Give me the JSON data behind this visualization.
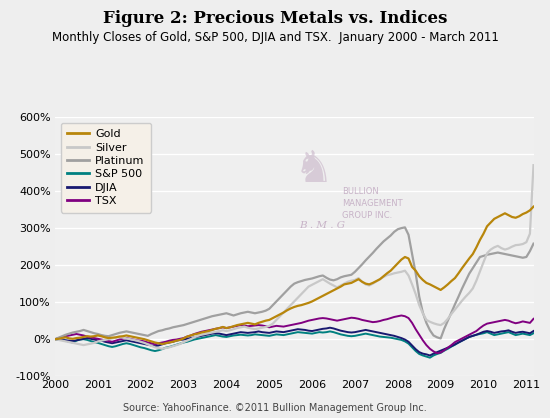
{
  "title": "Figure 2: Precious Metals vs. Indices",
  "subtitle": "Monthly Closes of Gold, S&P 500, DJIA and TSX.  January 2000 - March 2011",
  "source": "Source: YahooFinance. ©2011 Bullion Management Group Inc.",
  "ylim": [
    -100,
    600
  ],
  "yticks": [
    -100,
    0,
    100,
    200,
    300,
    400,
    500,
    600
  ],
  "ytick_labels": [
    "-100%",
    "0%",
    "100%",
    "200%",
    "300%",
    "400%",
    "500%",
    "600%"
  ],
  "xticks": [
    0,
    12,
    24,
    36,
    48,
    60,
    72,
    84,
    96,
    108,
    120,
    132
  ],
  "xtick_labels": [
    "2000",
    "2001",
    "2002",
    "2003",
    "2004",
    "2005",
    "2006",
    "2007",
    "2008",
    "2009",
    "2010",
    "2011"
  ],
  "series": {
    "Gold": {
      "color": "#B8860B",
      "linewidth": 1.6,
      "zorder": 5,
      "values": [
        0,
        1,
        3,
        5,
        2,
        1,
        3,
        4,
        6,
        8,
        7,
        8,
        10,
        8,
        5,
        3,
        4,
        5,
        7,
        8,
        10,
        8,
        6,
        4,
        2,
        0,
        -3,
        -6,
        -9,
        -11,
        -13,
        -11,
        -9,
        -7,
        -4,
        -2,
        2,
        7,
        10,
        13,
        15,
        18,
        20,
        22,
        25,
        28,
        30,
        33,
        30,
        32,
        35,
        38,
        40,
        42,
        44,
        42,
        40,
        44,
        47,
        50,
        52,
        57,
        62,
        67,
        72,
        78,
        83,
        87,
        90,
        92,
        95,
        98,
        102,
        107,
        112,
        117,
        122,
        127,
        132,
        137,
        142,
        148,
        150,
        152,
        157,
        162,
        155,
        150,
        148,
        152,
        157,
        162,
        170,
        178,
        185,
        195,
        205,
        215,
        222,
        218,
        195,
        185,
        170,
        160,
        152,
        148,
        143,
        138,
        133,
        140,
        148,
        157,
        165,
        178,
        192,
        205,
        218,
        230,
        248,
        268,
        285,
        305,
        315,
        325,
        330,
        335,
        340,
        335,
        330,
        328,
        332,
        338,
        342,
        348,
        358
      ]
    },
    "Silver": {
      "color": "#C8C8C8",
      "linewidth": 1.6,
      "zorder": 4,
      "values": [
        0,
        -2,
        -4,
        -6,
        -8,
        -10,
        -12,
        -14,
        -16,
        -14,
        -12,
        -10,
        -6,
        -4,
        -2,
        0,
        2,
        4,
        6,
        4,
        2,
        0,
        -2,
        -4,
        -7,
        -10,
        -14,
        -18,
        -22,
        -24,
        -26,
        -24,
        -22,
        -19,
        -16,
        -13,
        -8,
        -4,
        0,
        5,
        9,
        12,
        14,
        16,
        18,
        20,
        22,
        24,
        22,
        24,
        27,
        30,
        32,
        34,
        31,
        29,
        27,
        29,
        31,
        33,
        36,
        42,
        52,
        62,
        72,
        82,
        92,
        102,
        112,
        122,
        132,
        142,
        147,
        152,
        157,
        162,
        156,
        150,
        145,
        140,
        145,
        150,
        155,
        158,
        160,
        165,
        155,
        148,
        145,
        150,
        156,
        162,
        168,
        173,
        175,
        178,
        180,
        182,
        185,
        172,
        148,
        122,
        92,
        70,
        52,
        47,
        43,
        40,
        38,
        44,
        55,
        68,
        80,
        92,
        104,
        115,
        125,
        137,
        158,
        183,
        208,
        232,
        242,
        248,
        252,
        246,
        242,
        245,
        250,
        254,
        255,
        257,
        262,
        285,
        470
      ]
    },
    "Platinum": {
      "color": "#A0A0A0",
      "linewidth": 1.6,
      "zorder": 3,
      "values": [
        0,
        4,
        8,
        12,
        15,
        18,
        20,
        22,
        25,
        22,
        19,
        16,
        14,
        11,
        9,
        8,
        11,
        14,
        17,
        19,
        21,
        19,
        17,
        15,
        13,
        11,
        9,
        14,
        18,
        22,
        24,
        27,
        29,
        32,
        34,
        36,
        38,
        41,
        44,
        47,
        50,
        53,
        56,
        59,
        62,
        64,
        66,
        68,
        70,
        67,
        64,
        67,
        70,
        72,
        74,
        72,
        70,
        72,
        74,
        77,
        82,
        92,
        102,
        112,
        122,
        132,
        142,
        150,
        154,
        157,
        160,
        162,
        164,
        167,
        170,
        172,
        166,
        161,
        159,
        162,
        167,
        170,
        172,
        174,
        182,
        192,
        202,
        213,
        223,
        233,
        244,
        254,
        264,
        272,
        280,
        290,
        297,
        300,
        302,
        282,
        230,
        178,
        115,
        72,
        44,
        24,
        10,
        5,
        2,
        28,
        50,
        72,
        94,
        115,
        137,
        157,
        177,
        192,
        207,
        222,
        225,
        228,
        230,
        232,
        234,
        232,
        230,
        228,
        226,
        224,
        222,
        220,
        222,
        238,
        258
      ]
    },
    "S&P 500": {
      "color": "#008080",
      "linewidth": 1.4,
      "zorder": 2,
      "values": [
        0,
        -1,
        -2,
        -4,
        -7,
        -9,
        -4,
        -1,
        0,
        -2,
        -5,
        -8,
        -10,
        -13,
        -16,
        -19,
        -21,
        -19,
        -16,
        -13,
        -11,
        -13,
        -16,
        -19,
        -22,
        -24,
        -27,
        -30,
        -32,
        -30,
        -27,
        -23,
        -21,
        -18,
        -15,
        -12,
        -9,
        -7,
        -4,
        -1,
        1,
        3,
        5,
        7,
        9,
        11,
        9,
        7,
        6,
        8,
        10,
        11,
        12,
        11,
        10,
        11,
        13,
        12,
        11,
        10,
        9,
        11,
        13,
        12,
        11,
        13,
        15,
        17,
        19,
        18,
        17,
        16,
        15,
        17,
        19,
        18,
        19,
        21,
        19,
        16,
        13,
        11,
        9,
        8,
        9,
        11,
        13,
        15,
        13,
        11,
        9,
        7,
        6,
        5,
        4,
        2,
        0,
        -2,
        -6,
        -12,
        -22,
        -32,
        -40,
        -44,
        -47,
        -50,
        -44,
        -40,
        -37,
        -31,
        -26,
        -20,
        -15,
        -9,
        -4,
        1,
        6,
        9,
        12,
        14,
        16,
        19,
        15,
        11,
        13,
        15,
        17,
        19,
        15,
        11,
        13,
        15,
        13,
        11,
        16
      ]
    },
    "DJIA": {
      "color": "#191970",
      "linewidth": 1.4,
      "zorder": 2,
      "values": [
        0,
        -1,
        -2,
        -3,
        -4,
        -5,
        -3,
        -1,
        1,
        3,
        1,
        -1,
        -3,
        -4,
        -7,
        -9,
        -11,
        -9,
        -7,
        -5,
        -3,
        -5,
        -7,
        -9,
        -11,
        -13,
        -15,
        -17,
        -19,
        -17,
        -14,
        -11,
        -9,
        -7,
        -4,
        -2,
        -1,
        1,
        3,
        5,
        7,
        9,
        11,
        13,
        15,
        16,
        15,
        13,
        11,
        13,
        15,
        17,
        19,
        18,
        17,
        18,
        19,
        21,
        19,
        18,
        17,
        19,
        21,
        20,
        19,
        21,
        23,
        25,
        27,
        26,
        25,
        23,
        22,
        24,
        26,
        28,
        29,
        31,
        29,
        26,
        23,
        21,
        19,
        18,
        19,
        21,
        23,
        25,
        23,
        21,
        19,
        17,
        15,
        13,
        11,
        9,
        6,
        3,
        -1,
        -7,
        -17,
        -27,
        -35,
        -39,
        -41,
        -44,
        -39,
        -35,
        -31,
        -27,
        -23,
        -19,
        -14,
        -9,
        -4,
        1,
        6,
        9,
        12,
        16,
        20,
        22,
        20,
        17,
        19,
        21,
        22,
        24,
        20,
        17,
        19,
        20,
        18,
        16,
        22
      ]
    },
    "TSX": {
      "color": "#800080",
      "linewidth": 1.4,
      "zorder": 2,
      "values": [
        0,
        3,
        6,
        8,
        10,
        12,
        14,
        12,
        10,
        7,
        5,
        3,
        1,
        -1,
        -3,
        -5,
        -7,
        -4,
        -1,
        1,
        3,
        1,
        -1,
        -3,
        -4,
        -6,
        -9,
        -11,
        -14,
        -11,
        -9,
        -7,
        -4,
        -2,
        -1,
        1,
        3,
        7,
        10,
        14,
        17,
        20,
        22,
        24,
        26,
        28,
        30,
        32,
        30,
        32,
        34,
        36,
        38,
        37,
        35,
        36,
        37,
        38,
        37,
        35,
        32,
        34,
        36,
        35,
        34,
        36,
        38,
        40,
        42,
        44,
        47,
        50,
        52,
        54,
        56,
        57,
        56,
        54,
        52,
        50,
        52,
        54,
        56,
        58,
        57,
        55,
        52,
        50,
        48,
        46,
        47,
        49,
        52,
        54,
        57,
        60,
        62,
        64,
        62,
        57,
        44,
        27,
        12,
        -3,
        -16,
        -26,
        -33,
        -38,
        -36,
        -30,
        -23,
        -16,
        -8,
        -3,
        2,
        7,
        12,
        17,
        22,
        30,
        37,
        42,
        44,
        46,
        48,
        50,
        52,
        50,
        46,
        43,
        45,
        48,
        46,
        44,
        55
      ]
    }
  },
  "background_color": "#eeeeee",
  "plot_background": "#efefef",
  "grid_color": "#ffffff",
  "title_fontsize": 12,
  "subtitle_fontsize": 8.5,
  "tick_fontsize": 8,
  "source_fontsize": 7,
  "legend_fontsize": 8,
  "watermark_text": "BULLION\nMANAGEMENT\nGROUP INC.",
  "watermark_color": "#c0a8c0",
  "bmg_text": "B . M . G",
  "logo_color": "#c0a8c0"
}
